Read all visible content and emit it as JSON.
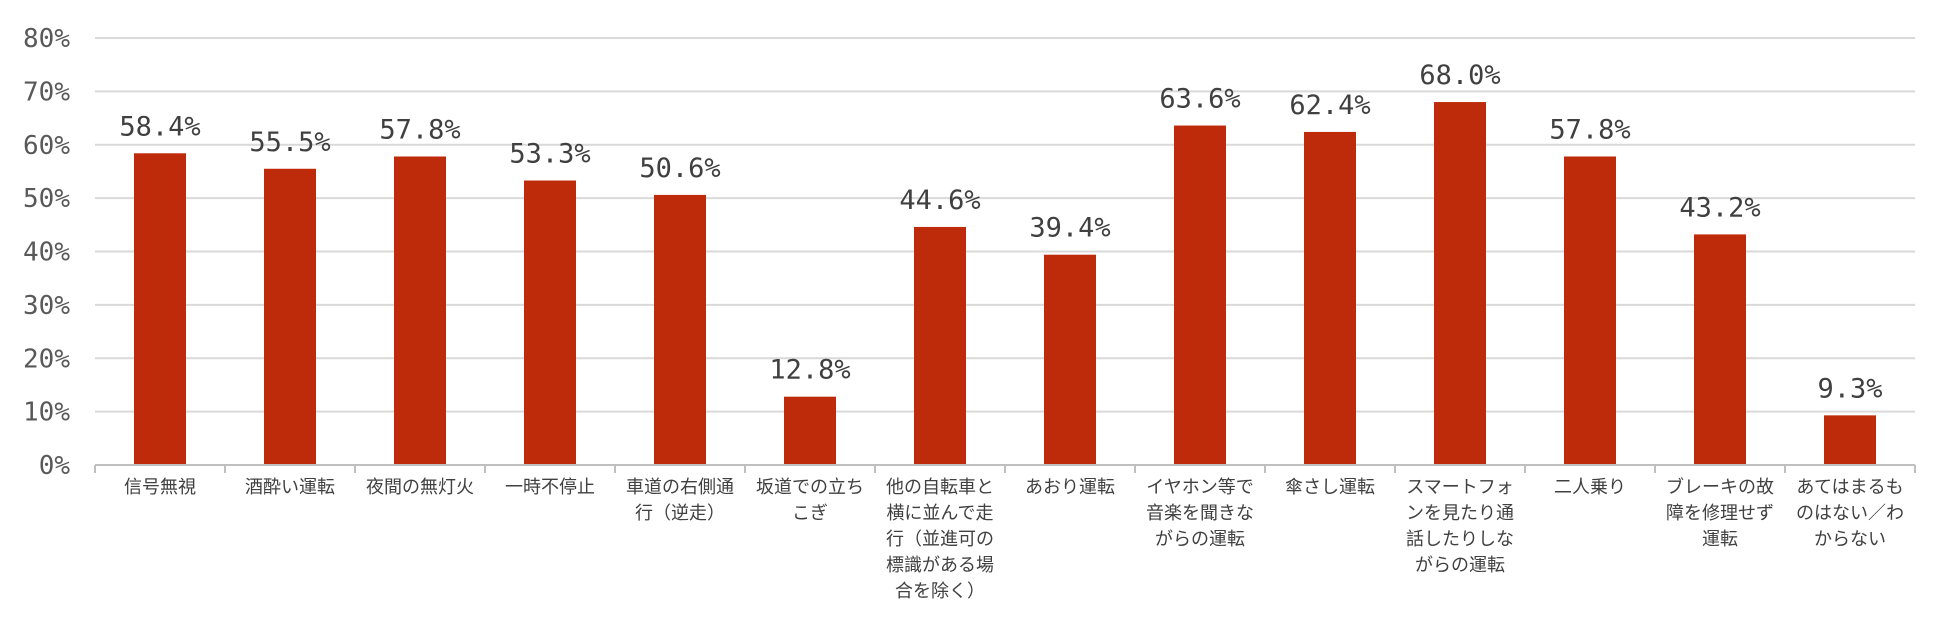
{
  "chart_data": {
    "type": "bar",
    "title": "",
    "xlabel": "",
    "ylabel": "",
    "ylim": [
      0,
      80
    ],
    "ytick_step": 10,
    "ytick_labels": [
      "0%",
      "10%",
      "20%",
      "30%",
      "40%",
      "50%",
      "60%",
      "70%",
      "80%"
    ],
    "grid": true,
    "bar_color": "#be2b0a",
    "categories": [
      [
        "信号無視"
      ],
      [
        "酒酔い運転"
      ],
      [
        "夜間の無灯火"
      ],
      [
        "一時不停止"
      ],
      [
        "車道の右側通",
        "行（逆走）"
      ],
      [
        "坂道での立ち",
        "こぎ"
      ],
      [
        "他の自転車と",
        "横に並んで走",
        "行（並進可の",
        "標識がある場",
        "合を除く）"
      ],
      [
        "あおり運転"
      ],
      [
        "イヤホン等で",
        "音楽を聞きな",
        "がらの運転"
      ],
      [
        "傘さし運転"
      ],
      [
        "スマートフォ",
        "ンを見たり通",
        "話したりしな",
        "がらの運転"
      ],
      [
        "二人乗り"
      ],
      [
        "ブレーキの故",
        "障を修理せず",
        "運転"
      ],
      [
        "あてはまるも",
        "のはない／わ",
        "からない"
      ]
    ],
    "values": [
      58.4,
      55.5,
      57.8,
      53.3,
      50.6,
      12.8,
      44.6,
      39.4,
      63.6,
      62.4,
      68.0,
      57.8,
      43.2,
      9.3
    ],
    "data_labels": [
      "58.4%",
      "55.5%",
      "57.8%",
      "53.3%",
      "50.6%",
      "12.8%",
      "44.6%",
      "39.4%",
      "63.6%",
      "62.4%",
      "68.0%",
      "57.8%",
      "43.2%",
      "9.3%"
    ]
  }
}
